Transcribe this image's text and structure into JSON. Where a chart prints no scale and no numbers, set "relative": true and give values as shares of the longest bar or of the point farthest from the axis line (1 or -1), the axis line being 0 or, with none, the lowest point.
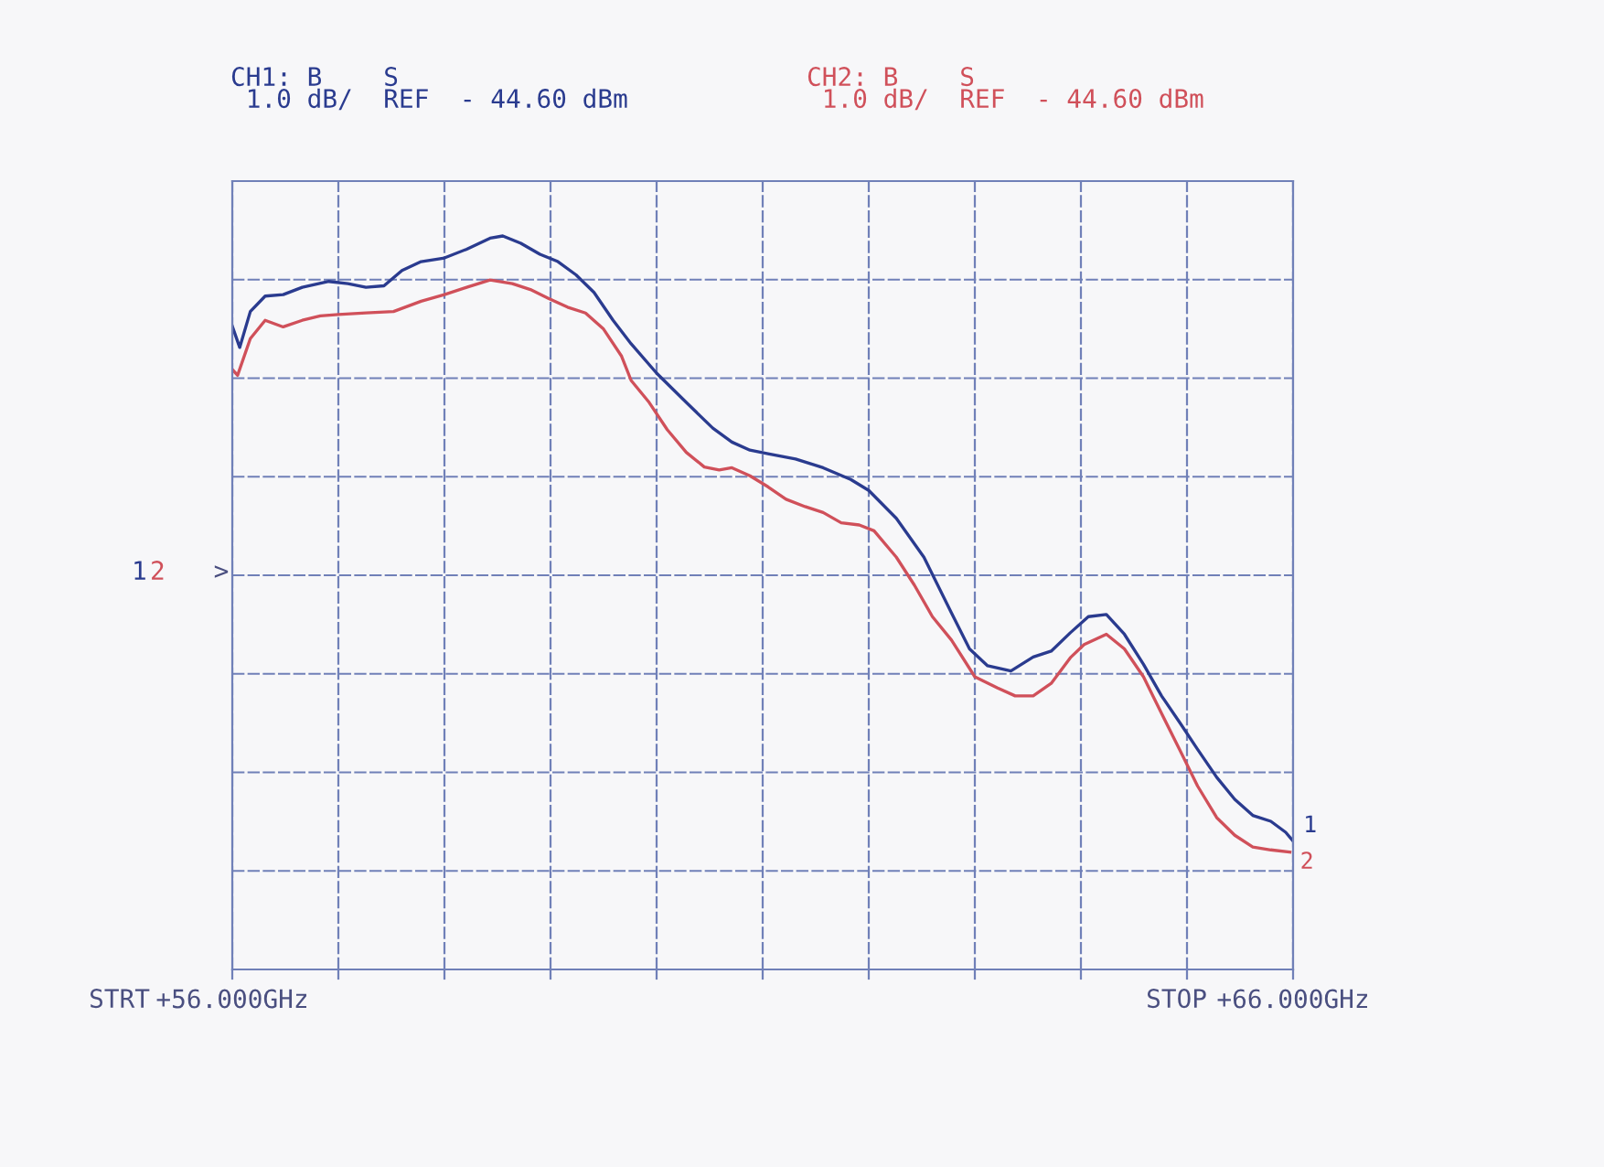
{
  "chart_data": {
    "type": "line",
    "relative": true,
    "annotations": [
      "CH1: B    S",
      " 1.0 dB/  REF  - 44.60 dBm",
      "CH2: B    S",
      " 1.0 dB/  REF  - 44.60 dBm",
      "STRT",
      "STOP",
      ">"
    ],
    "xlim": [
      56,
      66
    ],
    "xticks": [
      {
        "value": 56,
        "label": "+56.000GHz"
      },
      {
        "value": 57,
        "label": null
      },
      {
        "value": 58,
        "label": null
      },
      {
        "value": 59,
        "label": null
      },
      {
        "value": 60,
        "label": null
      },
      {
        "value": 61,
        "label": null
      },
      {
        "value": 62,
        "label": null
      },
      {
        "value": 63,
        "label": null
      },
      {
        "value": 64,
        "label": null
      },
      {
        "value": 65,
        "label": null
      },
      {
        "value": 66,
        "label": "+66.000GHz"
      }
    ],
    "grid": true,
    "legend": false,
    "marker": "none",
    "line_style": "solid",
    "series": [
      {
        "name": "1",
        "color": "#2a3b8f",
        "x": [
          56.0,
          56.07,
          56.17,
          56.31,
          56.48,
          56.66,
          56.91,
          57.09,
          57.26,
          57.43,
          57.6,
          57.78,
          58.0,
          58.21,
          58.43,
          58.55,
          58.72,
          58.9,
          59.07,
          59.24,
          59.41,
          59.59,
          59.76,
          60.0,
          60.28,
          60.53,
          60.71,
          60.88,
          61.05,
          61.31,
          61.57,
          61.83,
          62.0,
          62.26,
          62.52,
          62.78,
          62.95,
          63.12,
          63.34,
          63.55,
          63.72,
          63.9,
          64.07,
          64.24,
          64.41,
          64.59,
          64.76,
          64.93,
          65.1,
          65.28,
          65.45,
          65.62,
          65.79,
          65.93,
          66.0
        ],
        "values": [
          0.877,
          0.848,
          0.897,
          0.918,
          0.92,
          0.93,
          0.938,
          0.935,
          0.93,
          0.932,
          0.953,
          0.965,
          0.97,
          0.982,
          0.997,
          1.0,
          0.99,
          0.975,
          0.965,
          0.947,
          0.923,
          0.885,
          0.853,
          0.813,
          0.773,
          0.738,
          0.719,
          0.708,
          0.703,
          0.696,
          0.684,
          0.668,
          0.653,
          0.615,
          0.562,
          0.486,
          0.437,
          0.414,
          0.407,
          0.426,
          0.434,
          0.459,
          0.481,
          0.484,
          0.457,
          0.416,
          0.373,
          0.337,
          0.3,
          0.262,
          0.232,
          0.21,
          0.202,
          0.187,
          0.175
        ]
      },
      {
        "name": "2",
        "color": "#d0505a",
        "x": [
          56.0,
          56.05,
          56.17,
          56.31,
          56.48,
          56.66,
          56.83,
          57.0,
          57.26,
          57.52,
          57.78,
          58.0,
          58.21,
          58.43,
          58.64,
          58.81,
          58.98,
          59.16,
          59.33,
          59.5,
          59.67,
          59.76,
          59.93,
          60.1,
          60.28,
          60.45,
          60.59,
          60.71,
          60.88,
          61.05,
          61.22,
          61.4,
          61.57,
          61.74,
          61.91,
          62.05,
          62.26,
          62.43,
          62.6,
          62.78,
          63.0,
          63.21,
          63.38,
          63.55,
          63.72,
          63.9,
          64.03,
          64.24,
          64.41,
          64.59,
          64.76,
          64.93,
          65.1,
          65.28,
          65.45,
          65.62,
          65.79,
          65.97
        ],
        "values": [
          0.818,
          0.81,
          0.86,
          0.885,
          0.876,
          0.885,
          0.891,
          0.893,
          0.895,
          0.897,
          0.911,
          0.92,
          0.93,
          0.94,
          0.935,
          0.927,
          0.915,
          0.903,
          0.895,
          0.873,
          0.836,
          0.803,
          0.773,
          0.736,
          0.705,
          0.685,
          0.681,
          0.684,
          0.673,
          0.658,
          0.641,
          0.631,
          0.623,
          0.609,
          0.606,
          0.598,
          0.562,
          0.524,
          0.481,
          0.449,
          0.399,
          0.384,
          0.373,
          0.373,
          0.39,
          0.425,
          0.443,
          0.457,
          0.437,
          0.399,
          0.349,
          0.3,
          0.25,
          0.207,
          0.183,
          0.167,
          0.163,
          0.16
        ]
      }
    ]
  }
}
